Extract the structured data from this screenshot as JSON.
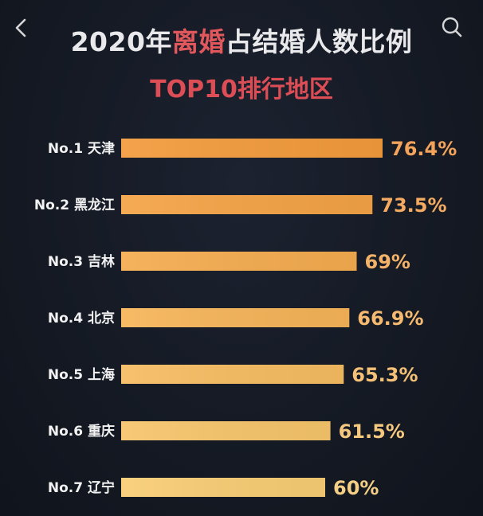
{
  "header": {
    "title_prefix": "2020年",
    "title_highlight": "离婚",
    "title_suffix": "占结婚人数比例",
    "subtitle": "TOP10排行地区"
  },
  "icons": {
    "back": "back-chevron-icon",
    "search": "search-icon"
  },
  "colors": {
    "background": "#151a24",
    "bar_top": "#f39b3c",
    "bar_bottom": "#f8cd74",
    "value_top": "#f4a45a",
    "value_bottom": "#f5cf86",
    "title_highlight": "#e0575c",
    "subtitle": "#dc4d55"
  },
  "chart_data": {
    "type": "bar",
    "orientation": "horizontal",
    "title": "2020年离婚占结婚人数比例",
    "subtitle": "TOP10排行地区",
    "categories": [
      "No.1 天津",
      "No.2 黑龙江",
      "No.3 吉林",
      "No.4 北京",
      "No.5 上海",
      "No.6 重庆",
      "No.7 辽宁"
    ],
    "values": [
      76.4,
      73.5,
      69,
      66.9,
      65.3,
      61.5,
      60
    ],
    "value_labels": [
      "76.4%",
      "73.5%",
      "69%",
      "66.9%",
      "65.3%",
      "61.5%",
      "60%"
    ],
    "xlim": [
      30,
      80
    ],
    "grid": false,
    "legend": "none"
  }
}
